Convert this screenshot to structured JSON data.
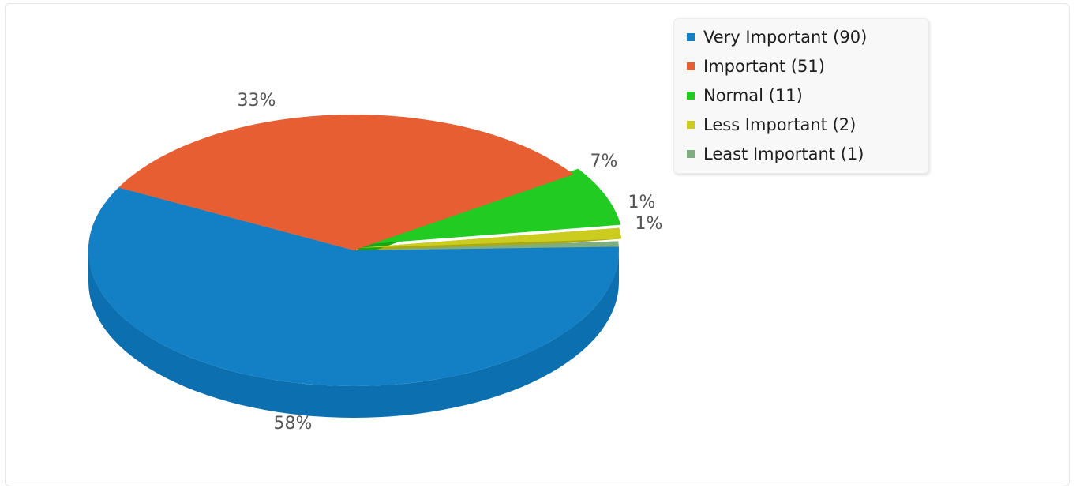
{
  "chart_data": {
    "type": "pie",
    "style": "3d",
    "title": "",
    "slices": [
      {
        "name": "Very Important",
        "value": 90,
        "percent_label": "58%",
        "color": "#1380c6",
        "side_color": "#0c6fb0"
      },
      {
        "name": "Important",
        "value": 51,
        "percent_label": "33%",
        "color": "#e65e31",
        "side_color": "#c94c22"
      },
      {
        "name": "Normal",
        "value": 11,
        "percent_label": "7%",
        "color": "#21cb21",
        "side_color": "#18a518"
      },
      {
        "name": "Less Important",
        "value": 2,
        "percent_label": "1%",
        "color": "#cccc1f",
        "side_color": "#a9a916"
      },
      {
        "name": "Least Important",
        "value": 1,
        "percent_label": "1%",
        "color": "#7ead80",
        "side_color": "#679468"
      }
    ],
    "legend": {
      "placement": "top-right",
      "entries": [
        "Very Important (90)",
        "Important (51)",
        "Normal (11)",
        "Less Important (2)",
        "Least Important (1)"
      ]
    }
  }
}
